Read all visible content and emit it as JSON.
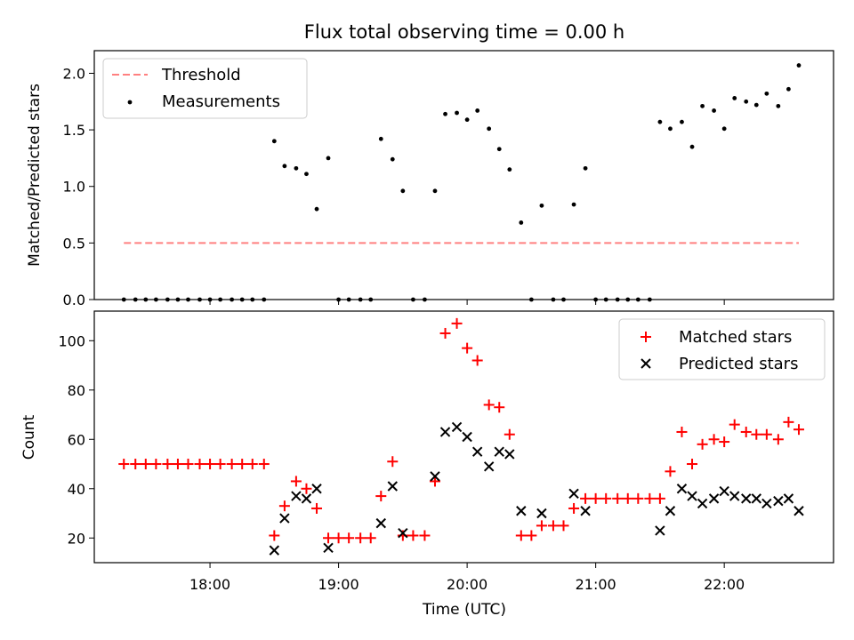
{
  "chart_data": [
    {
      "type": "scatter",
      "title": "Flux total observing time = 0.00 h",
      "ylabel": "Matched/Predicted stars",
      "xlim_hours": [
        17.1,
        22.85
      ],
      "ylim": [
        0,
        2.2
      ],
      "yticks": [
        0.0,
        0.5,
        1.0,
        1.5,
        2.0
      ],
      "ytick_labels": [
        "0.0",
        "0.5",
        "1.0",
        "1.5",
        "2.0"
      ],
      "legend": [
        "Threshold",
        "Measurements"
      ],
      "threshold": {
        "value": 0.5,
        "x_start": 17.33,
        "x_end": 22.58,
        "color": "#ff8080"
      },
      "measurements": {
        "color": "#000000",
        "x": [
          17.33,
          17.42,
          17.5,
          17.58,
          17.67,
          17.75,
          17.83,
          17.92,
          18.0,
          18.08,
          18.17,
          18.25,
          18.33,
          18.42,
          18.5,
          18.58,
          18.67,
          18.75,
          18.83,
          18.92,
          19.0,
          19.08,
          19.17,
          19.25,
          19.33,
          19.42,
          19.5,
          19.58,
          19.67,
          19.75,
          19.83,
          19.92,
          20.0,
          20.08,
          20.17,
          20.25,
          20.33,
          20.42,
          20.5,
          20.58,
          20.67,
          20.75,
          20.83,
          20.92,
          21.0,
          21.08,
          21.17,
          21.25,
          21.33,
          21.42,
          21.5,
          21.58,
          21.67,
          21.75,
          21.83,
          21.92,
          22.0,
          22.08,
          22.17,
          22.25,
          22.33,
          22.42,
          22.5,
          22.58
        ],
        "y": [
          0,
          0,
          0,
          0,
          0,
          0,
          0,
          0,
          0,
          0,
          0,
          0,
          0,
          0,
          1.4,
          1.18,
          1.16,
          1.11,
          0.8,
          1.25,
          0,
          0,
          0,
          0,
          1.42,
          1.24,
          0.96,
          0,
          0,
          0.96,
          1.64,
          1.65,
          1.59,
          1.67,
          1.51,
          1.33,
          1.15,
          0.68,
          0,
          0.83,
          0,
          0,
          0.84,
          1.16,
          0,
          0,
          0,
          0,
          0,
          0,
          1.57,
          1.51,
          1.57,
          1.35,
          1.71,
          1.67,
          1.51,
          1.78,
          1.75,
          1.72,
          1.82,
          1.71,
          1.86,
          2.07
        ]
      }
    },
    {
      "type": "scatter",
      "xlabel": "Time (UTC)",
      "ylabel": "Count",
      "xlim_hours": [
        17.1,
        22.85
      ],
      "ylim": [
        10,
        112
      ],
      "yticks": [
        20,
        40,
        60,
        80,
        100
      ],
      "ytick_labels": [
        "20",
        "40",
        "60",
        "80",
        "100"
      ],
      "xticks_hours": [
        18,
        19,
        20,
        21,
        22
      ],
      "xtick_labels": [
        "18:00",
        "19:00",
        "20:00",
        "21:00",
        "22:00"
      ],
      "legend": [
        "Matched stars",
        "Predicted stars"
      ],
      "series": [
        {
          "name": "Matched stars",
          "marker": "+",
          "color": "#ff0000",
          "x": [
            17.33,
            17.42,
            17.5,
            17.58,
            17.67,
            17.75,
            17.83,
            17.92,
            18.0,
            18.08,
            18.17,
            18.25,
            18.33,
            18.42,
            18.5,
            18.58,
            18.67,
            18.75,
            18.83,
            18.92,
            19.0,
            19.08,
            19.17,
            19.25,
            19.33,
            19.42,
            19.5,
            19.58,
            19.67,
            19.75,
            19.83,
            19.92,
            20.0,
            20.08,
            20.17,
            20.25,
            20.33,
            20.42,
            20.5,
            20.58,
            20.67,
            20.75,
            20.83,
            20.92,
            21.0,
            21.08,
            21.17,
            21.25,
            21.33,
            21.42,
            21.5,
            21.58,
            21.67,
            21.75,
            21.83,
            21.92,
            22.0,
            22.08,
            22.17,
            22.25,
            22.33,
            22.42,
            22.5,
            22.58
          ],
          "y": [
            50,
            50,
            50,
            50,
            50,
            50,
            50,
            50,
            50,
            50,
            50,
            50,
            50,
            50,
            21,
            33,
            43,
            40,
            32,
            20,
            20,
            20,
            20,
            20,
            37,
            51,
            21,
            21,
            21,
            43,
            103,
            107,
            97,
            92,
            74,
            73,
            62,
            21,
            21,
            25,
            25,
            25,
            32,
            36,
            36,
            36,
            36,
            36,
            36,
            36,
            36,
            47,
            63,
            50,
            58,
            60,
            59,
            66,
            63,
            62,
            62,
            60,
            67,
            64
          ]
        },
        {
          "name": "Predicted stars",
          "marker": "x",
          "color": "#000000",
          "x": [
            18.5,
            18.58,
            18.67,
            18.75,
            18.83,
            18.92,
            19.33,
            19.42,
            19.5,
            19.75,
            19.83,
            19.92,
            20.0,
            20.08,
            20.17,
            20.25,
            20.33,
            20.42,
            20.58,
            20.83,
            20.92,
            21.5,
            21.58,
            21.67,
            21.75,
            21.83,
            21.92,
            22.0,
            22.08,
            22.17,
            22.25,
            22.33,
            22.42,
            22.5,
            22.58
          ],
          "y": [
            15,
            28,
            37,
            36,
            40,
            16,
            26,
            41,
            22,
            45,
            63,
            65,
            61,
            55,
            49,
            55,
            54,
            31,
            30,
            38,
            31,
            23,
            31,
            40,
            37,
            34,
            36,
            39,
            37,
            36,
            36,
            34,
            35,
            36,
            31
          ]
        }
      ]
    }
  ]
}
